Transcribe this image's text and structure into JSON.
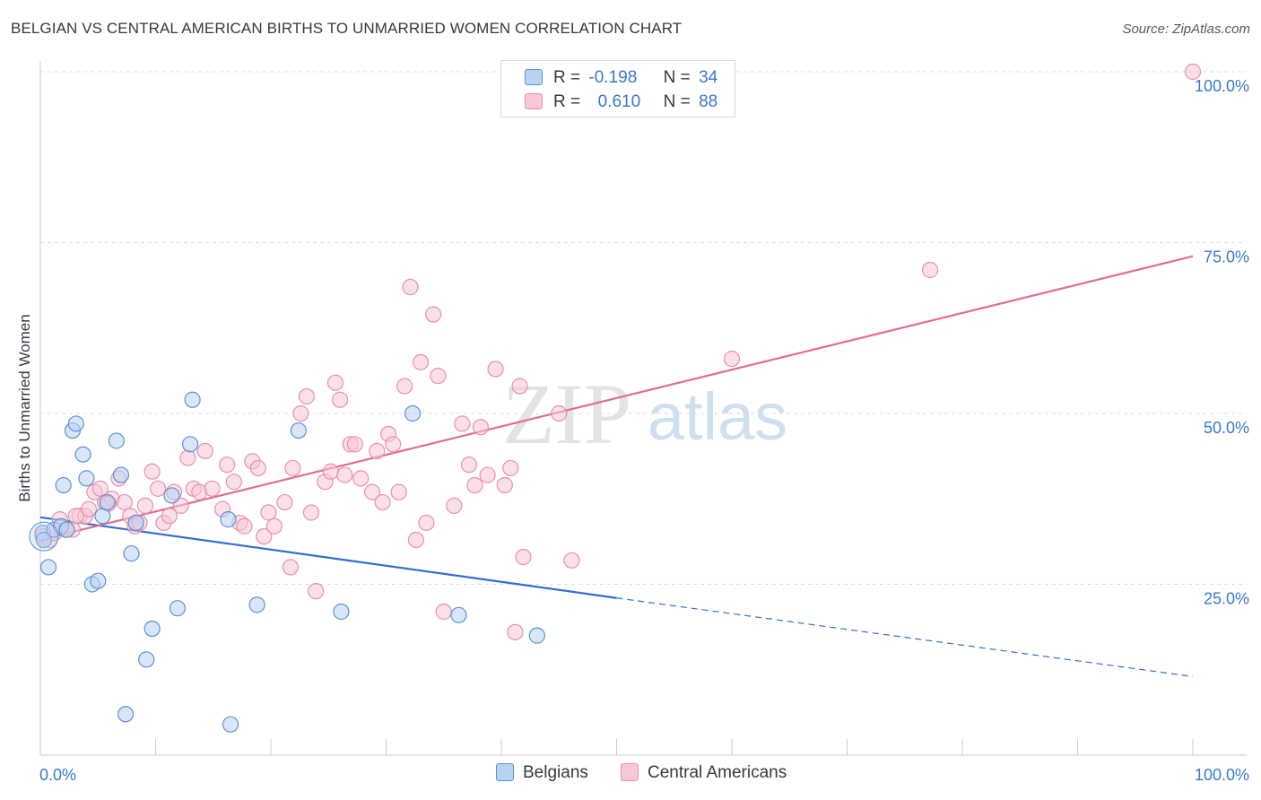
{
  "title": "BELGIAN VS CENTRAL AMERICAN BIRTHS TO UNMARRIED WOMEN CORRELATION CHART",
  "source": "Source: ZipAtlas.com",
  "watermark": {
    "zip": "ZIP",
    "atlas": "atlas"
  },
  "legend_top": {
    "rows": [
      {
        "r_label": "R =",
        "r_value": "-0.198",
        "n_label": "N =",
        "n_value": "34"
      },
      {
        "r_label": "R =",
        "r_value": "0.610",
        "n_label": "N =",
        "n_value": "88"
      }
    ]
  },
  "colors": {
    "belgians_fill": "#b9d2f3",
    "belgians_stroke": "#5b93d6",
    "belgians_line": "#2f6fd1",
    "central_fill": "#f8c7d6",
    "central_stroke": "#e890ad",
    "central_line": "#e26b96",
    "grid": "#d9dce0",
    "tick_label": "#3a78c9"
  },
  "chart_data": {
    "type": "scatter",
    "title": "BELGIAN VS CENTRAL AMERICAN BIRTHS TO UNMARRIED WOMEN CORRELATION CHART",
    "xlabel": "",
    "ylabel": "Births to Unmarried Women",
    "xlim": [
      0,
      100
    ],
    "ylim": [
      0,
      105
    ],
    "x_tick_labels": [
      "0.0%",
      "100.0%"
    ],
    "y_ticks": [
      25,
      50,
      75,
      100
    ],
    "y_tick_labels": [
      "25.0%",
      "50.0%",
      "75.0%",
      "100.0%"
    ],
    "grid": true,
    "legend_position": "bottom-center",
    "series": [
      {
        "name": "Belgians",
        "r": -0.198,
        "n": 34,
        "points": [
          [
            0.2,
            32.5
          ],
          [
            0.3,
            31.5
          ],
          [
            0.7,
            27.5
          ],
          [
            1.2,
            33
          ],
          [
            1.8,
            33.5
          ],
          [
            2,
            39.5
          ],
          [
            2.3,
            33
          ],
          [
            2.8,
            47.5
          ],
          [
            3.1,
            48.5
          ],
          [
            3.7,
            44
          ],
          [
            4,
            40.5
          ],
          [
            4.5,
            25
          ],
          [
            5,
            25.5
          ],
          [
            5.4,
            35
          ],
          [
            5.8,
            37
          ],
          [
            6.6,
            46
          ],
          [
            7,
            41
          ],
          [
            7.4,
            6
          ],
          [
            7.9,
            29.5
          ],
          [
            8.3,
            34
          ],
          [
            9.2,
            14
          ],
          [
            9.7,
            18.5
          ],
          [
            11.9,
            21.5
          ],
          [
            11.4,
            38
          ],
          [
            13,
            45.5
          ],
          [
            13.2,
            52
          ],
          [
            16.3,
            34.5
          ],
          [
            16.5,
            4.5
          ],
          [
            18.8,
            22
          ],
          [
            22.4,
            47.5
          ],
          [
            26.1,
            21
          ],
          [
            32.3,
            50
          ],
          [
            36.3,
            20.5
          ],
          [
            43.1,
            17.5
          ]
        ],
        "trend": {
          "x_start": 0,
          "y_start": 34.8,
          "x_solid_end": 50,
          "y_solid_end": 23,
          "x_end": 100,
          "y_end": 11.5
        }
      },
      {
        "name": "Central Americans",
        "r": 0.61,
        "n": 88,
        "points": [
          [
            0.2,
            32
          ],
          [
            0.8,
            31.5
          ],
          [
            1.2,
            32.5
          ],
          [
            1.7,
            34.5
          ],
          [
            2.2,
            33
          ],
          [
            2.8,
            33
          ],
          [
            3.4,
            35
          ],
          [
            3.9,
            35
          ],
          [
            4.2,
            36
          ],
          [
            4.7,
            38.5
          ],
          [
            5.2,
            39
          ],
          [
            5.6,
            37
          ],
          [
            6.2,
            37.5
          ],
          [
            6.8,
            40.5
          ],
          [
            7.3,
            37
          ],
          [
            7.8,
            35
          ],
          [
            8.2,
            33.5
          ],
          [
            8.6,
            34
          ],
          [
            9.1,
            36.5
          ],
          [
            9.7,
            41.5
          ],
          [
            10.2,
            39
          ],
          [
            10.7,
            34
          ],
          [
            11.2,
            35
          ],
          [
            11.6,
            38.5
          ],
          [
            12.2,
            36.5
          ],
          [
            12.8,
            43.5
          ],
          [
            13.3,
            39
          ],
          [
            13.8,
            38.5
          ],
          [
            14.3,
            44.5
          ],
          [
            14.9,
            39
          ],
          [
            15.8,
            36
          ],
          [
            16.2,
            42.5
          ],
          [
            16.8,
            40
          ],
          [
            17.3,
            34
          ],
          [
            17.7,
            33.5
          ],
          [
            18.4,
            43
          ],
          [
            18.9,
            42
          ],
          [
            19.4,
            32
          ],
          [
            19.8,
            35.5
          ],
          [
            20.3,
            33.5
          ],
          [
            21.2,
            37
          ],
          [
            21.7,
            27.5
          ],
          [
            21.9,
            42
          ],
          [
            22.6,
            50
          ],
          [
            23.1,
            52.5
          ],
          [
            23.5,
            35.5
          ],
          [
            23.9,
            24
          ],
          [
            24.7,
            40
          ],
          [
            25.2,
            41.5
          ],
          [
            25.6,
            54.5
          ],
          [
            26,
            52
          ],
          [
            26.4,
            41
          ],
          [
            26.9,
            45.5
          ],
          [
            27.3,
            45.5
          ],
          [
            27.8,
            40.5
          ],
          [
            28.8,
            38.5
          ],
          [
            29.2,
            44.5
          ],
          [
            29.7,
            37
          ],
          [
            30.2,
            47
          ],
          [
            30.6,
            45.5
          ],
          [
            31.1,
            38.5
          ],
          [
            31.6,
            54
          ],
          [
            32.1,
            68.5
          ],
          [
            32.6,
            31.5
          ],
          [
            33,
            57.5
          ],
          [
            33.5,
            34
          ],
          [
            34.1,
            64.5
          ],
          [
            34.5,
            55.5
          ],
          [
            35,
            21
          ],
          [
            35.9,
            36.5
          ],
          [
            36.6,
            48.5
          ],
          [
            37.2,
            42.5
          ],
          [
            37.7,
            39.5
          ],
          [
            38.2,
            48
          ],
          [
            38.8,
            41
          ],
          [
            39.5,
            56.5
          ],
          [
            40.3,
            39.5
          ],
          [
            40.8,
            42
          ],
          [
            41.2,
            18
          ],
          [
            41.6,
            54
          ],
          [
            41.9,
            29
          ],
          [
            45,
            50
          ],
          [
            46.1,
            28.5
          ],
          [
            60,
            58
          ],
          [
            77.2,
            71
          ],
          [
            100,
            100
          ],
          [
            3.1,
            35
          ],
          [
            5.9,
            36.8
          ]
        ],
        "trend": {
          "x_start": 0,
          "y_start": 31.5,
          "x_end": 100,
          "y_end": 73
        }
      }
    ]
  }
}
